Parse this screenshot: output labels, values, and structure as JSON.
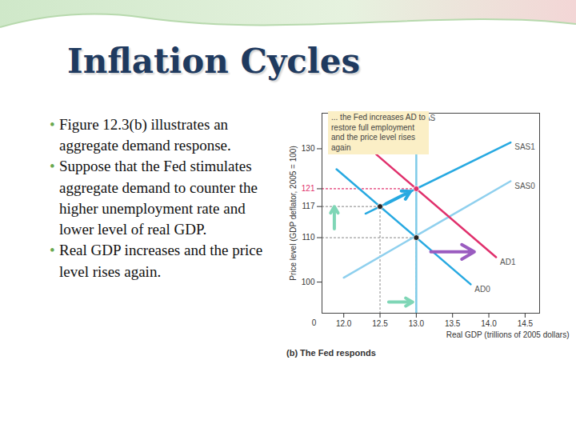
{
  "title": "Inflation Cycles",
  "bullets": [
    "Figure 12.3(b) illustrates an aggregate demand response.",
    "Suppose that the Fed stimulates aggregate demand to counter the higher unemployment rate and lower level of real GDP.",
    "Real GDP increases and the price level rises again."
  ],
  "chart_data": {
    "type": "line",
    "caption": "(b) The Fed responds",
    "callout": "... the Fed increases AD to restore full employment and the price level rises again",
    "origin_label": "0",
    "x_label": "Real GDP (trillions of 2005 dollars)",
    "y_label": "Price level (GDP deflator, 2005 = 100)",
    "xlim": [
      11.7,
      14.7
    ],
    "xticks": [
      {
        "value": 12,
        "label": "12.0"
      },
      12.5,
      {
        "value": 13,
        "label": "13.0"
      },
      13.5,
      {
        "value": 14,
        "label": "14.0"
      },
      14.5
    ],
    "ylim": [
      93,
      138
    ],
    "yticks": [
      100,
      110,
      117,
      121,
      130
    ],
    "series": [
      {
        "name": "LAS",
        "color": "#7fcbe8",
        "x": [
          13,
          13
        ],
        "values": [
          93,
          138
        ]
      },
      {
        "name": "SAS0",
        "color": "#8fd0ee",
        "x": [
          12.0,
          14.3
        ],
        "values": [
          101,
          122.7
        ]
      },
      {
        "name": "SAS1",
        "color": "#27a9e1",
        "x": [
          12.3,
          14.3
        ],
        "values": [
          115.4,
          131.4
        ]
      },
      {
        "name": "AD0",
        "color": "#27a9e1",
        "x": [
          11.9,
          13.75
        ],
        "values": [
          125.4,
          99.5
        ]
      },
      {
        "name": "AD1",
        "color": "#e0306c",
        "x": [
          12.45,
          14.1
        ],
        "values": [
          128.7,
          105.6
        ]
      }
    ],
    "points": [
      {
        "x": 13,
        "y": 110,
        "color": "#222222"
      },
      {
        "x": 12.5,
        "y": 117,
        "color": "#222222"
      },
      {
        "x": 13,
        "y": 121,
        "color": "#e0306c"
      }
    ],
    "arrows": [
      {
        "x1": 13.2,
        "y1": 106.8,
        "x2": 13.8,
        "y2": 106.8,
        "color": "#9a5cc0"
      },
      {
        "x1": 12.58,
        "y1": 117.6,
        "x2": 12.92,
        "y2": 120.4,
        "color": "#27a9e1"
      },
      {
        "x1": 11.87,
        "y1": 112,
        "x2": 11.87,
        "y2": 117,
        "color": "#7fd6b6"
      },
      {
        "x1": 12.62,
        "y1": 95.5,
        "x2": 12.95,
        "y2": 95.5,
        "color": "#7fd6b6"
      }
    ]
  }
}
